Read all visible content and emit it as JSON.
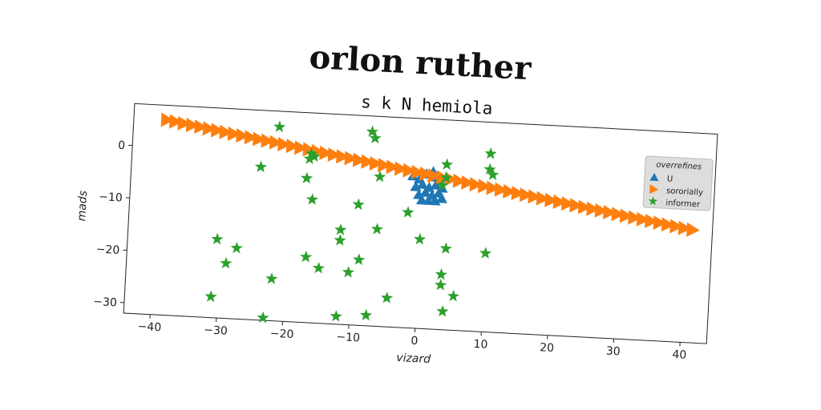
{
  "chart_data": {
    "type": "scatter",
    "suptitle": "orlon ruther",
    "title": "s k N hemiola",
    "xlabel": "vizard",
    "ylabel": "mads",
    "xlim": [
      -44,
      44
    ],
    "ylim": [
      -32,
      8
    ],
    "xticks": [
      -40,
      -30,
      -20,
      -10,
      0,
      10,
      20,
      30,
      40
    ],
    "yticks": [
      0,
      -10,
      -20,
      -30
    ],
    "grid": false,
    "legend": {
      "title": "overrefines",
      "position": "upper right",
      "entries": [
        "U",
        "sororially",
        "informer"
      ]
    },
    "rotation_deg": 3,
    "series": [
      {
        "name": "U",
        "marker": "triangle-up",
        "color": "#1f77b4",
        "points": [
          [
            -1.5,
            -3
          ],
          [
            -0.5,
            -3.5
          ],
          [
            0.5,
            -2.5
          ],
          [
            1.5,
            -3
          ],
          [
            2.5,
            -3.5
          ],
          [
            3.5,
            -3
          ],
          [
            -1,
            -5
          ],
          [
            0,
            -4.5
          ],
          [
            1,
            -5
          ],
          [
            2,
            -4.5
          ],
          [
            3,
            -5
          ],
          [
            -0.5,
            -6.5
          ],
          [
            0.5,
            -6
          ],
          [
            1.5,
            -6.5
          ],
          [
            2.5,
            -6
          ],
          [
            0,
            -7.5
          ],
          [
            1,
            -7.5
          ],
          [
            2,
            -7.5
          ],
          [
            3,
            -7
          ],
          [
            1.5,
            -2
          ]
        ]
      },
      {
        "name": "sororially",
        "marker": "triangle-right",
        "color": "#ff7f0e",
        "line": {
          "x_start": -39,
          "y_start": 5.2,
          "x_end": 41,
          "y_end": -10.5,
          "count": 64
        }
      },
      {
        "name": "informer",
        "marker": "star",
        "color": "#2ca02c",
        "points": [
          [
            -22,
            5
          ],
          [
            -8,
            5
          ],
          [
            -7.5,
            3.8
          ],
          [
            -17,
            0.2
          ],
          [
            -16.5,
            -0.3
          ],
          [
            -17.2,
            -0.8
          ],
          [
            -24.5,
            -2.8
          ],
          [
            -17.5,
            -4.5
          ],
          [
            -6.5,
            -3.5
          ],
          [
            -16.5,
            -8.5
          ],
          [
            -9.5,
            -9
          ],
          [
            -12,
            -14
          ],
          [
            -12,
            -16
          ],
          [
            -6.5,
            -13.5
          ],
          [
            -2,
            -10
          ],
          [
            0,
            -15
          ],
          [
            -30.5,
            -17
          ],
          [
            -27.5,
            -18.5
          ],
          [
            -29,
            -21.5
          ],
          [
            -17,
            -19.5
          ],
          [
            -15,
            -21.5
          ],
          [
            -10.5,
            -22
          ],
          [
            -9,
            -19.5
          ],
          [
            -22,
            -24
          ],
          [
            4,
            -16.5
          ],
          [
            3.5,
            -21.5
          ],
          [
            3.5,
            -23.5
          ],
          [
            5.5,
            -25.5
          ],
          [
            4,
            -28.5
          ],
          [
            -4.5,
            -26.5
          ],
          [
            -7.5,
            -30
          ],
          [
            -12,
            -30.5
          ],
          [
            -23,
            -31.5
          ],
          [
            -31,
            -28
          ],
          [
            10,
            -17
          ],
          [
            10,
            2
          ],
          [
            10,
            -1
          ],
          [
            10.5,
            -2
          ],
          [
            3.5,
            -0.5
          ],
          [
            3.5,
            -3
          ],
          [
            3,
            -4.5
          ]
        ]
      }
    ]
  }
}
